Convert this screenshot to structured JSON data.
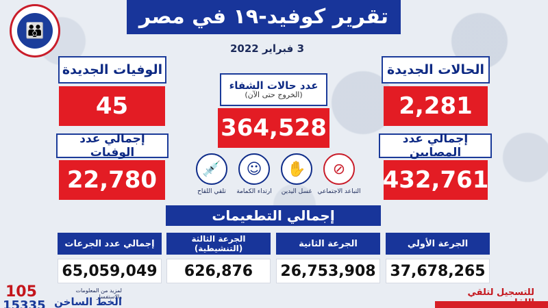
{
  "header": {
    "title": "تقرير كوفيد-١٩ في مصر",
    "date": "3 فبراير 2022"
  },
  "stats": {
    "new_cases_label": "الحالات الجديدة",
    "new_cases_value": "2,281",
    "total_cases_label": "إجمالي عدد المصابين",
    "total_cases_value": "432,761",
    "recovered_label": "عدد حالات الشفاء",
    "recovered_sub": "(الخروج حتى الآن)",
    "recovered_value": "364,528",
    "new_deaths_label": "الوفيات الجديدة",
    "new_deaths_value": "45",
    "total_deaths_label": "إجمالي عدد الوفيات",
    "total_deaths_value": "22,780"
  },
  "precautions": [
    {
      "caption": "التباعد الاجتماعي",
      "icon": "no-crowd-icon"
    },
    {
      "caption": "غسل اليدين",
      "icon": "hand-wash-icon"
    },
    {
      "caption": "ارتداء الكمامة",
      "icon": "mask-icon"
    },
    {
      "caption": "تلقي اللقاح",
      "icon": "vaccine-icon"
    }
  ],
  "vaccinations": {
    "title": "إجمالي التطعيمات",
    "first_label": "الجرعة الأولي",
    "first_value": "37,678,265",
    "second_label": "الجرعة الثانية",
    "second_value": "26,753,908",
    "third_label": "الجرعة الثالثة (التنشيطية)",
    "third_value": "626,876",
    "total_label": "إجمالي عدد الجرعات",
    "total_value": "65,059,049"
  },
  "footer": {
    "hotline_1": "105",
    "hotline_2": "15335",
    "hotline_text_1": "لمزيد من المعلومات والاستفسار",
    "hotline_text_2": "الخط الساخن",
    "register_text": "للتسجيل لتلقي اللقاح"
  },
  "colors": {
    "navy": "#18359a",
    "red": "#e31c24"
  }
}
